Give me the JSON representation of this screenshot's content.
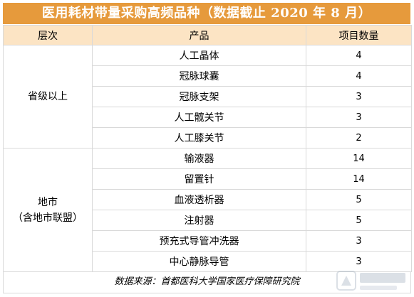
{
  "title": "医用耗材带量采购高频品种（数据截止 2020 年 8 月）",
  "headers": {
    "level": "层次",
    "product": "产品",
    "count": "项目数量"
  },
  "groups": [
    {
      "level_lines": [
        "省级以上"
      ],
      "rows": [
        {
          "product": "人工晶体",
          "count": "4"
        },
        {
          "product": "冠脉球囊",
          "count": "4"
        },
        {
          "product": "冠脉支架",
          "count": "3"
        },
        {
          "product": "人工髋关节",
          "count": "3"
        },
        {
          "product": "人工膝关节",
          "count": "2"
        }
      ]
    },
    {
      "level_lines": [
        "地市",
        "（含地市联盟）"
      ],
      "rows": [
        {
          "product": "输液器",
          "count": "14"
        },
        {
          "product": "留置针",
          "count": "14"
        },
        {
          "product": "血液透析器",
          "count": "5"
        },
        {
          "product": "注射器",
          "count": "5"
        },
        {
          "product": "预充式导管冲洗器",
          "count": "3"
        },
        {
          "product": "中心静脉导管",
          "count": "3"
        }
      ]
    }
  ],
  "source": "数据来源：首都医科大学国家医疗保障研究院",
  "colors": {
    "title_bg": "#e69a3c",
    "header_bg": "#fce4c4",
    "border": "#d9d9d9"
  }
}
